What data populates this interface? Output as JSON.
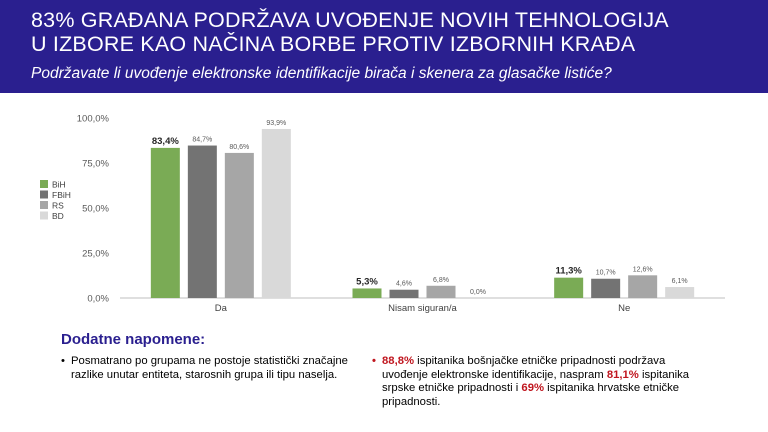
{
  "header": {
    "title_line1": "83% GRAĐANA PODRŽAVA UVOĐENJE NOVIH TEHNOLOGIJA",
    "title_line2": "U IZBORE KAO NAČINA BORBE PROTIV IZBORNIH KRAĐA",
    "subtitle": "Podržavate li uvođenje elektronske identifikacije birača i skenera za glasačke listiće?",
    "background_color": "#2a1f8f"
  },
  "chart_data": {
    "type": "bar",
    "categories": [
      "Da",
      "Nisam siguran/a",
      "Ne"
    ],
    "series": [
      {
        "name": "BiH",
        "values": [
          83.4,
          5.3,
          11.3
        ],
        "labels": [
          "83,4%",
          "5,3%",
          "11,3%"
        ],
        "color": "#7aab55",
        "bold_labels": true
      },
      {
        "name": "FBiH",
        "values": [
          84.7,
          4.6,
          10.7
        ],
        "labels": [
          "84,7%",
          "4,6%",
          "10,7%"
        ],
        "color": "#737373",
        "bold_labels": false
      },
      {
        "name": "RS",
        "values": [
          80.6,
          6.8,
          12.6
        ],
        "labels": [
          "80,6%",
          "6,8%",
          "12,6%"
        ],
        "color": "#a6a6a6",
        "bold_labels": false
      },
      {
        "name": "BD",
        "values": [
          93.9,
          0.0,
          6.1
        ],
        "labels": [
          "93,9%",
          "0,0%",
          "6,1%"
        ],
        "color": "#d9d9d9",
        "bold_labels": false
      }
    ],
    "y_ticks": [
      0,
      25,
      50,
      75,
      100
    ],
    "y_tick_labels": [
      "0,0%",
      "25,0%",
      "50,0%",
      "75,0%",
      "100,0%"
    ],
    "ylim": [
      0,
      100
    ],
    "grid": false,
    "legend_position": "left"
  },
  "notes": {
    "title": "Dodatne napomene:",
    "bullet": "•",
    "left_text": "Posmatrano po grupama ne postoje statistički značajne razlike unutar entiteta, starosnih grupa ili tipu naselja.",
    "right": {
      "value1": "88,8%",
      "text1": " ispitanika bošnjačke etničke pripadnosti podržava uvođenje elektronske identifikacije, naspram ",
      "value2": "81,1%",
      "text2": " ispitanika srpske etničke pripadnosti i ",
      "value3": "69%",
      "text3": " ispitanika hrvatske etničke pripadnosti."
    }
  }
}
